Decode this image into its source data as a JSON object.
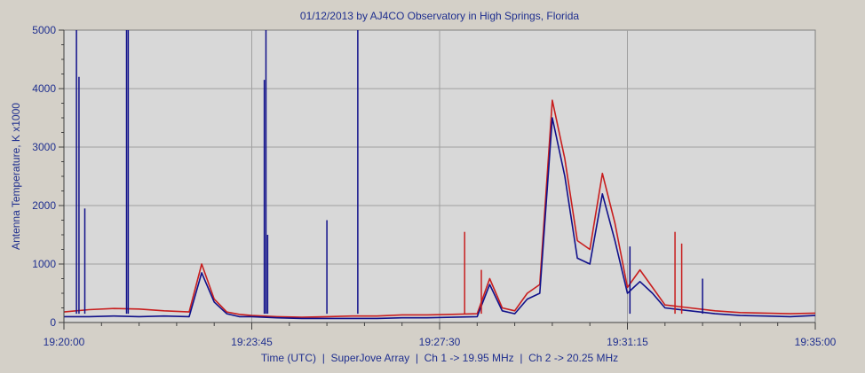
{
  "chart_data": {
    "type": "line",
    "title": "01/12/2013  by  AJ4CO Observatory  in  High Springs, Florida",
    "xlabel": "Time (UTC)  |  SuperJove Array  |  Ch 1 -> 19.95 MHz  |  Ch 2 -> 20.25 MHz",
    "ylabel": "Antenna Temperature, K x1000",
    "x_ticks": [
      "19:20:00",
      "19:23:45",
      "19:27:30",
      "19:31:15",
      "19:35:00"
    ],
    "y_ticks": [
      0,
      1000,
      2000,
      3000,
      4000,
      5000
    ],
    "ylim": [
      0,
      5000
    ],
    "xlim": [
      "19:20:00",
      "19:35:00"
    ],
    "grid": true,
    "legend": "none",
    "colors": {
      "ch1": "#10108a",
      "ch2": "#c81e1e",
      "background": "#d4d0c8",
      "grid": "#a0a0a0"
    },
    "series": [
      {
        "channel": "Ch 1",
        "color": "#10108a",
        "x": [
          "19:20:00",
          "19:20:30",
          "19:21:00",
          "19:21:30",
          "19:22:00",
          "19:22:30",
          "19:22:45",
          "19:23:00",
          "19:23:15",
          "19:23:30",
          "19:23:45",
          "19:24:15",
          "19:24:45",
          "19:25:15",
          "19:25:45",
          "19:26:15",
          "19:26:45",
          "19:27:15",
          "19:27:45",
          "19:28:15",
          "19:28:30",
          "19:28:45",
          "19:29:00",
          "19:29:15",
          "19:29:30",
          "19:29:45",
          "19:30:00",
          "19:30:15",
          "19:30:30",
          "19:30:45",
          "19:31:00",
          "19:31:15",
          "19:31:30",
          "19:31:45",
          "19:32:00",
          "19:32:30",
          "19:33:00",
          "19:33:30",
          "19:34:00",
          "19:34:30",
          "19:35:00"
        ],
        "values": [
          100,
          100,
          110,
          100,
          110,
          100,
          850,
          350,
          150,
          100,
          100,
          80,
          70,
          70,
          70,
          70,
          80,
          80,
          90,
          100,
          650,
          200,
          150,
          400,
          500,
          3500,
          2500,
          1100,
          1000,
          2200,
          1400,
          500,
          700,
          500,
          250,
          200,
          150,
          120,
          110,
          100,
          120
        ]
      },
      {
        "channel": "Ch 2",
        "color": "#c81e1e",
        "x": [
          "19:20:00",
          "19:20:30",
          "19:21:00",
          "19:21:30",
          "19:22:00",
          "19:22:30",
          "19:22:45",
          "19:23:00",
          "19:23:15",
          "19:23:30",
          "19:23:45",
          "19:24:15",
          "19:24:45",
          "19:25:15",
          "19:25:45",
          "19:26:15",
          "19:26:45",
          "19:27:15",
          "19:27:45",
          "19:28:15",
          "19:28:30",
          "19:28:45",
          "19:29:00",
          "19:29:15",
          "19:29:30",
          "19:29:45",
          "19:30:00",
          "19:30:15",
          "19:30:30",
          "19:30:45",
          "19:31:00",
          "19:31:15",
          "19:31:30",
          "19:31:45",
          "19:32:00",
          "19:32:30",
          "19:33:00",
          "19:33:30",
          "19:34:00",
          "19:34:30",
          "19:35:00"
        ],
        "values": [
          180,
          220,
          240,
          230,
          200,
          180,
          1000,
          400,
          180,
          140,
          120,
          100,
          90,
          100,
          110,
          110,
          130,
          130,
          140,
          150,
          750,
          250,
          200,
          500,
          650,
          3800,
          2800,
          1400,
          1250,
          2550,
          1700,
          600,
          900,
          600,
          300,
          250,
          200,
          170,
          160,
          150,
          160
        ]
      }
    ],
    "spikes": [
      {
        "channel": "Ch 1",
        "x": "19:20:15",
        "value": 5000
      },
      {
        "channel": "Ch 1",
        "x": "19:20:18",
        "value": 4200
      },
      {
        "channel": "Ch 1",
        "x": "19:20:25",
        "value": 1950
      },
      {
        "channel": "Ch 1",
        "x": "19:21:15",
        "value": 5000
      },
      {
        "channel": "Ch 1",
        "x": "19:21:17",
        "value": 5000
      },
      {
        "channel": "Ch 1",
        "x": "19:24:00",
        "value": 4150
      },
      {
        "channel": "Ch 1",
        "x": "19:24:02",
        "value": 5000
      },
      {
        "channel": "Ch 1",
        "x": "19:24:04",
        "value": 1500
      },
      {
        "channel": "Ch 1",
        "x": "19:25:15",
        "value": 1750
      },
      {
        "channel": "Ch 1",
        "x": "19:25:52",
        "value": 5000
      },
      {
        "channel": "Ch 1",
        "x": "19:31:18",
        "value": 1300
      },
      {
        "channel": "Ch 1",
        "x": "19:32:45",
        "value": 750
      },
      {
        "channel": "Ch 2",
        "x": "19:28:00",
        "value": 1550
      },
      {
        "channel": "Ch 2",
        "x": "19:28:20",
        "value": 900
      },
      {
        "channel": "Ch 2",
        "x": "19:32:12",
        "value": 1550
      },
      {
        "channel": "Ch 2",
        "x": "19:32:20",
        "value": 1350
      }
    ]
  }
}
